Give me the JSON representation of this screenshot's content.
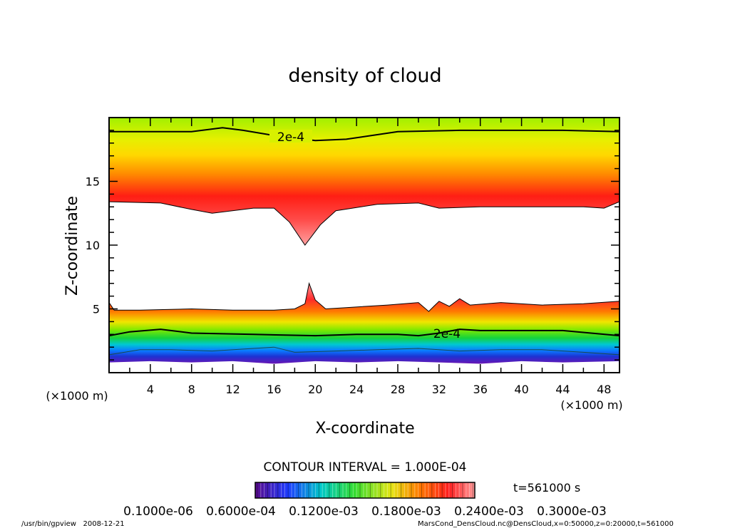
{
  "chart_data": {
    "type": "heatmap",
    "title": "density of cloud",
    "xlabel": "X-coordinate",
    "ylabel": "Z-coordinate",
    "x_units": "(×1000 m)",
    "y_units": "(×1000 m)",
    "xlim": [
      0,
      49.5
    ],
    "ylim": [
      0,
      20
    ],
    "x_ticks": [
      4,
      8,
      12,
      16,
      20,
      24,
      28,
      32,
      36,
      40,
      44,
      48
    ],
    "y_ticks": [
      5,
      10,
      15
    ],
    "contour_interval_text": "CONTOUR INTERVAL = 1.000E-04",
    "time_text": "t=561000 s",
    "contour_label": "2e-4",
    "colorbar": {
      "labels": [
        "0.1000e-06",
        "0.6000e-04",
        "0.1200e-03",
        "0.1800e-03",
        "0.2400e-03",
        "0.3000e-03"
      ],
      "colors": [
        "#5a0a8c",
        "#1e3cff",
        "#00c8c8",
        "#32dc32",
        "#e6e614",
        "#ff7800",
        "#ff1e1e",
        "#ff9a9a"
      ]
    },
    "upper_cloud_bottom_edge": {
      "x": [
        0,
        5,
        8,
        10,
        14,
        16,
        17.5,
        19,
        20.5,
        22,
        26,
        30,
        32,
        36,
        40,
        46,
        48,
        49.5
      ],
      "z": [
        13.4,
        13.3,
        12.8,
        12.5,
        12.9,
        12.9,
        11.8,
        10.0,
        11.6,
        12.7,
        13.2,
        13.3,
        12.9,
        13.0,
        13.0,
        13.0,
        12.9,
        13.4
      ]
    },
    "upper_contour_2e-4": {
      "x": [
        0,
        8,
        11,
        13,
        16,
        20,
        23,
        28,
        34,
        44,
        49.5
      ],
      "z": [
        18.9,
        18.9,
        19.2,
        19.0,
        18.6,
        18.2,
        18.3,
        18.9,
        19.0,
        19.0,
        18.9
      ]
    },
    "lower_cloud_top_edge": {
      "x": [
        0,
        0.5,
        3,
        8,
        12,
        16,
        18,
        19,
        19.4,
        20,
        21,
        23,
        27,
        30,
        31,
        31.5,
        32,
        33,
        34,
        35,
        38,
        42,
        46,
        49.5
      ],
      "z": [
        5.5,
        4.9,
        4.9,
        5.0,
        4.9,
        4.9,
        5.0,
        5.4,
        7.0,
        5.7,
        5.0,
        5.1,
        5.3,
        5.5,
        4.8,
        5.2,
        5.6,
        5.2,
        5.8,
        5.3,
        5.5,
        5.3,
        5.4,
        5.6
      ]
    },
    "lower_contour_2e-4": {
      "x": [
        0,
        2,
        5,
        8,
        14,
        20,
        24,
        28,
        30,
        32,
        34,
        36,
        40,
        44,
        49.5
      ],
      "z": [
        2.9,
        3.2,
        3.4,
        3.1,
        3.0,
        2.9,
        3.0,
        3.0,
        2.9,
        3.1,
        3.4,
        3.3,
        3.3,
        3.3,
        2.9
      ]
    },
    "lower_contour_1e-4": {
      "x": [
        0,
        3,
        6,
        10,
        14,
        16,
        18,
        22,
        26,
        30,
        34,
        38,
        42,
        46,
        49.5
      ],
      "z": [
        1.4,
        1.8,
        1.8,
        1.7,
        1.9,
        2.0,
        1.6,
        1.7,
        1.8,
        1.9,
        1.7,
        1.8,
        1.8,
        1.6,
        1.4
      ]
    },
    "lower_cloud_bottom_edge": {
      "x": [
        0,
        4,
        8,
        12,
        16,
        20,
        24,
        28,
        32,
        36,
        40,
        44,
        49.5
      ],
      "z": [
        0.8,
        0.9,
        0.8,
        0.9,
        0.7,
        0.9,
        0.8,
        0.9,
        0.8,
        0.7,
        0.9,
        0.8,
        0.9
      ]
    }
  },
  "footer": {
    "left": "/usr/bin/gpview   2008-12-21",
    "right": "MarsCond_DensCloud.nc@DensCloud,x=0:50000,z=0:20000,t=561000"
  }
}
